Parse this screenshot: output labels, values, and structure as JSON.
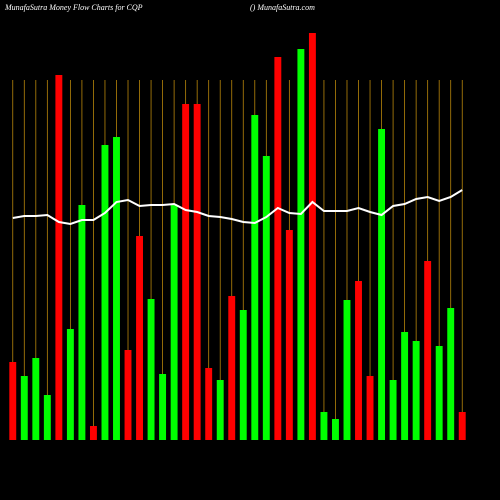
{
  "chart_data": {
    "type": "bar",
    "title": "MunafaSutra  Money Flow  Charts for CQP",
    "subtitle": "() MunafaSutra.com",
    "categories": [
      null,
      null,
      null,
      null,
      null,
      null,
      null,
      null,
      null,
      null,
      null,
      null,
      null,
      null,
      null,
      null,
      null,
      null,
      null,
      null,
      null,
      null,
      null,
      null,
      null,
      null,
      null,
      null,
      null,
      null,
      null,
      null,
      null,
      null,
      null,
      null,
      null,
      null,
      null,
      null
    ],
    "values": [
      78,
      64,
      82,
      45,
      365,
      111,
      235,
      14,
      295,
      303,
      90,
      204,
      141,
      66,
      235,
      336,
      336,
      72,
      60,
      144,
      130,
      325,
      284,
      383,
      210,
      391,
      407,
      28,
      21,
      140,
      159,
      64,
      311,
      60,
      108,
      99,
      179,
      94,
      132,
      28
    ],
    "colors": [
      "#ff0000",
      "#00ff00",
      "#00ff00",
      "#00ff00",
      "#ff0000",
      "#00ff00",
      "#00ff00",
      "#ff0000",
      "#00ff00",
      "#00ff00",
      "#ff0000",
      "#ff0000",
      "#00ff00",
      "#00ff00",
      "#00ff00",
      "#ff0000",
      "#ff0000",
      "#ff0000",
      "#00ff00",
      "#ff0000",
      "#00ff00",
      "#00ff00",
      "#00ff00",
      "#ff0000",
      "#ff0000",
      "#00ff00",
      "#ff0000",
      "#00ff00",
      "#00ff00",
      "#00ff00",
      "#ff0000",
      "#ff0000",
      "#00ff00",
      "#00ff00",
      "#00ff00",
      "#00ff00",
      "#ff0000",
      "#00ff00",
      "#00ff00",
      "#ff0000"
    ],
    "line": {
      "color": "#ffffff",
      "values": [
        222,
        224,
        224,
        225,
        218,
        216,
        220,
        220,
        227,
        238,
        240,
        234,
        235,
        235,
        236,
        230,
        228,
        224,
        223,
        221,
        218,
        217,
        223,
        232,
        227,
        226,
        238,
        229,
        229,
        229,
        232,
        228,
        225,
        234,
        236,
        241,
        243,
        239,
        243,
        250
      ]
    },
    "ylim": [
      0,
      410
    ],
    "grid": true,
    "grid_color": "#b8860b"
  }
}
